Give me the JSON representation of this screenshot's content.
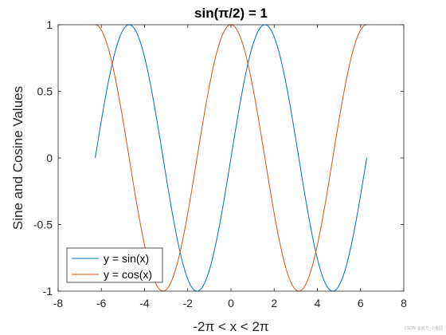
{
  "chart_data": {
    "type": "line",
    "title": "sin(π/2) = 1",
    "xlabel": "-2π < x < 2π",
    "ylabel": "Sine and Cosine Values",
    "xlim": [
      -8,
      8
    ],
    "ylim": [
      -1,
      1
    ],
    "x_ticks": [
      "-8",
      "-6",
      "-4",
      "-2",
      "0",
      "2",
      "4",
      "6",
      "8"
    ],
    "y_ticks": [
      "-1",
      "-0.5",
      "0",
      "0.5",
      "1"
    ],
    "grid": false,
    "legend_position": "bottom-left",
    "x_range": [
      -6.2832,
      6.2832
    ],
    "series": [
      {
        "name": "y = sin(x)",
        "function": "sin",
        "color": "#0072BD"
      },
      {
        "name": "y = cos(x)",
        "function": "cos",
        "color": "#D95319"
      }
    ]
  },
  "watermark": "CSDN @远方_小金园"
}
